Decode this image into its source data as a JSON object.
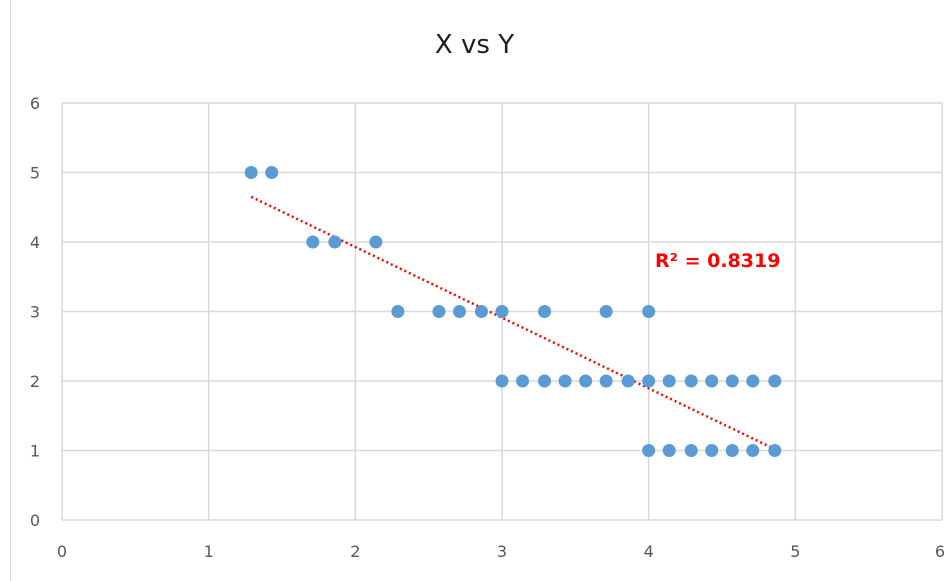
{
  "chart_data": {
    "type": "scatter",
    "title": "X vs Y",
    "xlabel": "",
    "ylabel": "",
    "xlim": [
      0,
      6
    ],
    "ylim": [
      0,
      6
    ],
    "x_ticks": [
      "0",
      "1",
      "2",
      "3",
      "4",
      "5",
      "6"
    ],
    "y_ticks": [
      "0",
      "1",
      "2",
      "3",
      "4",
      "5",
      "6"
    ],
    "grid": true,
    "legend": "none",
    "points": [
      {
        "x": 1.29,
        "y": 5
      },
      {
        "x": 1.43,
        "y": 5
      },
      {
        "x": 1.71,
        "y": 4
      },
      {
        "x": 1.86,
        "y": 4
      },
      {
        "x": 2.14,
        "y": 4
      },
      {
        "x": 2.29,
        "y": 3
      },
      {
        "x": 2.57,
        "y": 3
      },
      {
        "x": 2.71,
        "y": 3
      },
      {
        "x": 2.86,
        "y": 3
      },
      {
        "x": 3.0,
        "y": 3
      },
      {
        "x": 3.29,
        "y": 3
      },
      {
        "x": 3.71,
        "y": 3
      },
      {
        "x": 4.0,
        "y": 3
      },
      {
        "x": 3.0,
        "y": 2
      },
      {
        "x": 3.14,
        "y": 2
      },
      {
        "x": 3.29,
        "y": 2
      },
      {
        "x": 3.43,
        "y": 2
      },
      {
        "x": 3.57,
        "y": 2
      },
      {
        "x": 3.71,
        "y": 2
      },
      {
        "x": 3.86,
        "y": 2
      },
      {
        "x": 4.0,
        "y": 2
      },
      {
        "x": 4.14,
        "y": 2
      },
      {
        "x": 4.29,
        "y": 2
      },
      {
        "x": 4.43,
        "y": 2
      },
      {
        "x": 4.57,
        "y": 2
      },
      {
        "x": 4.71,
        "y": 2
      },
      {
        "x": 4.86,
        "y": 2
      },
      {
        "x": 4.0,
        "y": 1
      },
      {
        "x": 4.14,
        "y": 1
      },
      {
        "x": 4.29,
        "y": 1
      },
      {
        "x": 4.43,
        "y": 1
      },
      {
        "x": 4.57,
        "y": 1
      },
      {
        "x": 4.71,
        "y": 1
      },
      {
        "x": 4.86,
        "y": 1
      }
    ],
    "trendline": {
      "type": "linear",
      "style": "dotted",
      "x": [
        1.29,
        4.86
      ],
      "y": [
        4.65,
        1.02
      ],
      "label": "R² = 0.8319"
    },
    "colors": {
      "marker": "#5b9bd5",
      "trendline": "#ff0000",
      "grid": "#d9d9d9",
      "tick_text": "#595959"
    }
  }
}
